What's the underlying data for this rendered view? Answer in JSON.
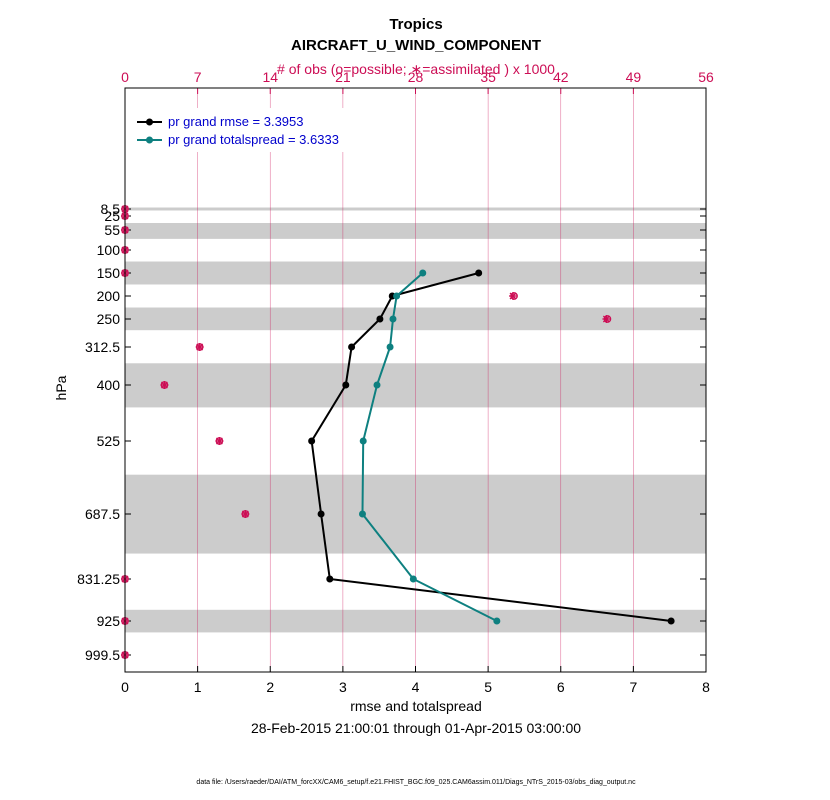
{
  "title": "Tropics",
  "subtitle": "AIRCRAFT_U_WIND_COMPONENT",
  "top_axis": {
    "label": "# of obs (o=possible; ∗=assimilated ) x 1000",
    "ticks": [
      "0",
      "7",
      "14",
      "21",
      "28",
      "35",
      "42",
      "49",
      "56"
    ],
    "color": "#cc0e55"
  },
  "chart_data": {
    "type": "line",
    "xlabel": "rmse and totalspread",
    "ylabel": "hPa",
    "xlim": [
      0,
      8
    ],
    "xticks": [
      "0",
      "1",
      "2",
      "3",
      "4",
      "5",
      "6",
      "7",
      "8"
    ],
    "y_levels": [
      8.5,
      25,
      55,
      100,
      150,
      200,
      250,
      312.5,
      400,
      525,
      687.5,
      831.25,
      925,
      999.5
    ],
    "y_tick_labels": [
      "8.5",
      "25",
      "55",
      "100",
      "150",
      "200",
      "250",
      "312.5",
      "400",
      "525",
      "687.5",
      "831.25",
      "925",
      "999.5"
    ],
    "shaded_bands_hpa": [
      [
        5,
        12
      ],
      [
        40,
        75
      ],
      [
        125,
        175
      ],
      [
        225,
        275
      ],
      [
        350,
        450
      ],
      [
        600,
        775
      ],
      [
        900,
        950
      ]
    ],
    "series": [
      {
        "name": "pr grand rmse",
        "legend": "pr grand rmse = 3.3953",
        "color": "#000000",
        "levels": [
          150,
          200,
          250,
          312.5,
          400,
          525,
          687.5,
          831.25,
          925
        ],
        "values": [
          4.87,
          3.68,
          3.51,
          3.12,
          3.04,
          2.57,
          2.7,
          2.82,
          7.52
        ]
      },
      {
        "name": "pr grand totalspread",
        "legend": "pr grand totalspread = 3.6333",
        "color": "#0e8080",
        "levels": [
          150,
          200,
          250,
          312.5,
          400,
          525,
          687.5,
          831.25,
          925
        ],
        "values": [
          4.1,
          3.74,
          3.69,
          3.65,
          3.47,
          3.28,
          3.27,
          3.97,
          5.12
        ]
      }
    ],
    "obs_series": {
      "name": "# of obs x 1000",
      "xlim": [
        0,
        56
      ],
      "color": "#cc0e55",
      "levels": [
        8.5,
        25,
        55,
        100,
        150,
        200,
        250,
        312.5,
        400,
        525,
        687.5,
        831.25,
        925,
        999.5
      ],
      "possible": [
        0,
        0,
        0,
        0,
        0,
        37.5,
        46.5,
        7.2,
        3.8,
        9.1,
        11.6,
        0,
        0,
        0
      ],
      "assimilated": [
        0,
        0,
        0,
        0,
        0,
        37.4,
        46.4,
        7.2,
        3.8,
        9.1,
        11.6,
        0,
        0,
        0
      ]
    }
  },
  "date_range": "28-Feb-2015 21:00:01 through 01-Apr-2015 03:00:00",
  "footer": "data file: /Users/raeder/DAI/ATM_forcXX/CAM6_setup/f.e21.FHIST_BGC.f09_025.CAM6assim.011/Diags_NTrS_2015-03/obs_diag_output.nc"
}
